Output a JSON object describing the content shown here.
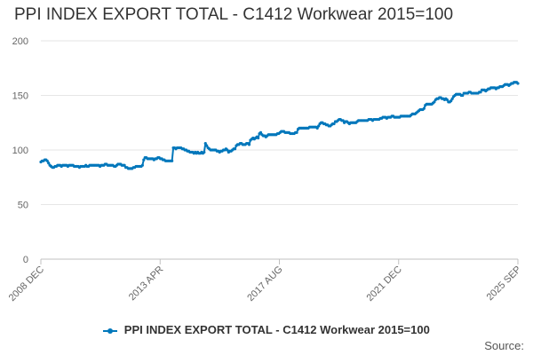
{
  "chart_data": {
    "type": "line",
    "title": "PPI INDEX EXPORT TOTAL - C1412 Workwear 2015=100",
    "xlabel": "",
    "ylabel": "",
    "ylim": [
      0,
      200
    ],
    "yticks": [
      "0",
      "50",
      "100",
      "150",
      "200"
    ],
    "xticks": [
      "2008 DEC",
      "2013 APR",
      "2017 AUG",
      "2021 DEC",
      "2025 SEP"
    ],
    "grid": true,
    "legend_position": "bottom-center",
    "x_start": "2008 DEC",
    "x_end": "2025 SEP",
    "color": "#0077bb",
    "series": [
      {
        "name": "PPI INDEX EXPORT TOTAL - C1412 Workwear 2015=100",
        "values": [
          89,
          90,
          90,
          91,
          91,
          90,
          88,
          86,
          85,
          84,
          84,
          85,
          85,
          86,
          86,
          86,
          85,
          86,
          86,
          86,
          86,
          85,
          86,
          86,
          86,
          86,
          85,
          85,
          85,
          85,
          84,
          85,
          85,
          85,
          85,
          86,
          85,
          85,
          86,
          86,
          86,
          86,
          86,
          86,
          86,
          86,
          85,
          86,
          86,
          86,
          87,
          87,
          86,
          86,
          86,
          86,
          86,
          85,
          85,
          86,
          87,
          87,
          87,
          86,
          86,
          86,
          84,
          84,
          83,
          83,
          83,
          83,
          84,
          84,
          85,
          85,
          85,
          85,
          85,
          86,
          91,
          93,
          93,
          92,
          92,
          92,
          92,
          92,
          91,
          92,
          92,
          93,
          93,
          92,
          92,
          91,
          91,
          90,
          90,
          90,
          90,
          90,
          90,
          102,
          102,
          101,
          102,
          102,
          102,
          102,
          101,
          101,
          100,
          100,
          99,
          99,
          98,
          98,
          98,
          97,
          98,
          97,
          98,
          97,
          97,
          98,
          97,
          98,
          106,
          104,
          102,
          101,
          100,
          100,
          100,
          100,
          100,
          99,
          99,
          98,
          99,
          99,
          100,
          100,
          101,
          100,
          98,
          99,
          99,
          100,
          101,
          101,
          104,
          105,
          105,
          106,
          106,
          105,
          105,
          105,
          106,
          106,
          105,
          109,
          110,
          111,
          110,
          111,
          112,
          111,
          115,
          116,
          114,
          113,
          113,
          112,
          113,
          114,
          114,
          114,
          114,
          114,
          114,
          114,
          115,
          115,
          116,
          117,
          117,
          117,
          116,
          116,
          116,
          116,
          115,
          115,
          115,
          115,
          116,
          116,
          119,
          120,
          120,
          120,
          120,
          120,
          120,
          120,
          120,
          121,
          121,
          121,
          121,
          121,
          121,
          120,
          122,
          124,
          125,
          125,
          124,
          124,
          123,
          123,
          122,
          122,
          123,
          124,
          124,
          126,
          126,
          127,
          128,
          128,
          127,
          127,
          125,
          126,
          126,
          125,
          124,
          125,
          125,
          125,
          125,
          125,
          126,
          127,
          127,
          127,
          127,
          127,
          127,
          127,
          127,
          128,
          128,
          128,
          127,
          128,
          128,
          128,
          128,
          128,
          129,
          129,
          130,
          130,
          130,
          129,
          130,
          130,
          130,
          131,
          131,
          130,
          130,
          130,
          130,
          130,
          131,
          131,
          131,
          131,
          131,
          131,
          131,
          131,
          132,
          133,
          133,
          133,
          134,
          135,
          136,
          137,
          137,
          137,
          138,
          141,
          142,
          142,
          142,
          142,
          142,
          143,
          144,
          146,
          147,
          147,
          148,
          148,
          147,
          147,
          146,
          147,
          146,
          144,
          144,
          145,
          147,
          149,
          150,
          151,
          151,
          151,
          151,
          150,
          150,
          152,
          152,
          152,
          152,
          153,
          153,
          152,
          152,
          152,
          152,
          152,
          152,
          153,
          153,
          155,
          155,
          155,
          154,
          155,
          156,
          156,
          157,
          157,
          157,
          157,
          156,
          157,
          157,
          158,
          158,
          158,
          159,
          160,
          160,
          160,
          159,
          160,
          161,
          161,
          162,
          162,
          162,
          161
        ]
      }
    ]
  },
  "source_label": "Source:"
}
